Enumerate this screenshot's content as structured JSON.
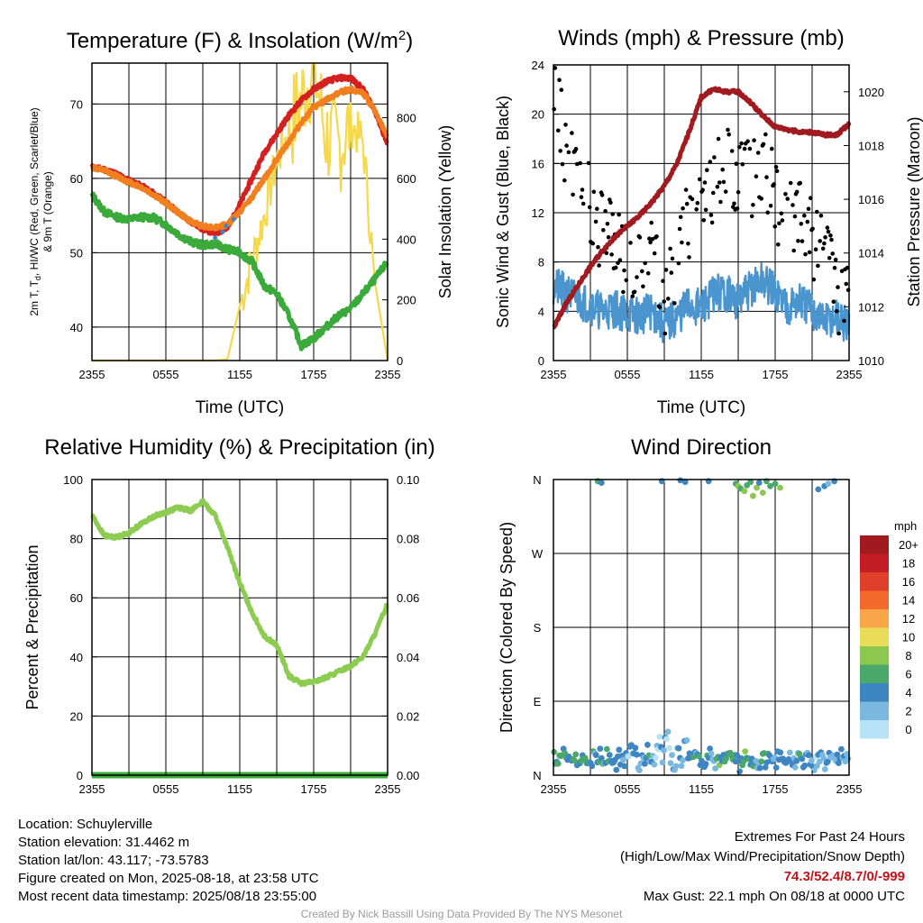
{
  "chart_data": [
    {
      "type": "line",
      "title": "Temperature (F) & Insolation (W/m²)",
      "title_main": "Temperature (F) & Insolation (W/m",
      "title_sup": "2",
      "title_end": ")",
      "xlabel": "Time (UTC)",
      "ylabel_left_line1": "2m T, T",
      "ylabel_left_sub": "d",
      "ylabel_left_rest": ", HI/WC (Red, Green, Scarlet/Blue)",
      "ylabel_left_line2": "& 9m T (Orange)",
      "ylabel_right": "Solar Insolation (Yellow)",
      "x_ticks": [
        "2355",
        "0555",
        "1155",
        "1755",
        "2355"
      ],
      "ylim_left": [
        35.5,
        75.5
      ],
      "yticks_left": [
        40,
        50,
        60,
        70
      ],
      "ylim_right": [
        0,
        980
      ],
      "yticks_right": [
        0,
        200,
        400,
        600,
        800
      ],
      "hours": [
        0,
        1,
        2,
        3,
        4,
        5,
        6,
        7,
        8,
        9,
        10,
        11,
        12,
        13,
        14,
        15,
        16,
        17,
        18,
        19,
        20,
        21,
        22,
        23,
        24
      ],
      "series": [
        {
          "color": "#d42020",
          "values": [
            61.5,
            61.2,
            60.6,
            59.7,
            59.0,
            58.0,
            56.8,
            55.4,
            54.2,
            53.2,
            52.6,
            53.3,
            56.5,
            60.0,
            63.5,
            66.0,
            68.5,
            70.5,
            72.0,
            73.0,
            73.5,
            73.5,
            72.0,
            69.0,
            64.5
          ]
        },
        {
          "color": "#f07f20",
          "values": [
            61.5,
            61.0,
            60.3,
            59.5,
            58.8,
            57.8,
            56.7,
            55.4,
            54.2,
            53.6,
            53.4,
            53.8,
            55.5,
            57.5,
            60.0,
            62.5,
            65.0,
            67.5,
            69.5,
            70.5,
            71.5,
            72.0,
            71.5,
            69.0,
            65.5
          ]
        },
        {
          "color": "#3aab3a",
          "values": [
            57.8,
            55.5,
            54.8,
            54.5,
            54.8,
            54.7,
            53.8,
            52.5,
            51.5,
            51.0,
            51.2,
            50.5,
            50.0,
            48.8,
            45.5,
            44.5,
            41.5,
            37.5,
            38.5,
            40.0,
            41.5,
            42.5,
            44.5,
            46.5,
            48.8
          ]
        }
      ],
      "insolation": [
        0,
        0,
        0,
        0,
        0,
        0,
        0,
        0,
        0,
        0,
        0,
        5,
        180,
        330,
        480,
        660,
        760,
        860,
        970,
        740,
        700,
        780,
        720,
        250,
        0
      ],
      "blue_dots": [
        {
          "x": 10.0,
          "y": 52.0
        },
        {
          "x": 10.6,
          "y": 52.8
        },
        {
          "x": 10.9,
          "y": 53.6
        },
        {
          "x": 11.5,
          "y": 54.5
        }
      ]
    },
    {
      "type": "line",
      "title": "Winds (mph) & Pressure (mb)",
      "xlabel": "Time (UTC)",
      "ylabel_left": "Sonic Wind & Gust (Blue, Black)",
      "ylabel_right": "Station Pressure (Maroon)",
      "x_ticks": [
        "2355",
        "0555",
        "1155",
        "1755",
        "2355"
      ],
      "ylim_left": [
        0,
        24
      ],
      "yticks_left": [
        0,
        4,
        8,
        12,
        16,
        20,
        24
      ],
      "ylim_right": [
        1010,
        1021
      ],
      "yticks_right": [
        1010,
        1012,
        1014,
        1016,
        1018,
        1020
      ],
      "hours": [
        0,
        1,
        2,
        3,
        4,
        5,
        6,
        7,
        8,
        9,
        10,
        11,
        12,
        13,
        14,
        15,
        16,
        17,
        18,
        19,
        20,
        21,
        22,
        23,
        24
      ],
      "wind_speed": [
        6.0,
        5.5,
        5.0,
        4.5,
        4.0,
        4.2,
        3.8,
        3.6,
        4.0,
        2.8,
        3.5,
        4.5,
        4.2,
        5.5,
        5.5,
        4.8,
        5.8,
        6.5,
        5.5,
        4.5,
        4.8,
        4.0,
        3.2,
        3.5,
        2.5
      ],
      "gust": [
        22.1,
        17,
        14.5,
        12.5,
        10.5,
        9.5,
        8.5,
        7.5,
        9.5,
        5.5,
        7.8,
        11.5,
        13,
        14.5,
        15.5,
        14,
        15,
        16,
        13,
        11,
        12.5,
        10,
        8,
        6,
        4
      ],
      "pressure": [
        1011.2,
        1012.1,
        1012.8,
        1013.5,
        1014.1,
        1014.6,
        1015.0,
        1015.4,
        1015.9,
        1016.5,
        1017.3,
        1018.5,
        1019.8,
        1020.1,
        1020.0,
        1020.0,
        1019.6,
        1019.1,
        1018.7,
        1018.6,
        1018.5,
        1018.5,
        1018.4,
        1018.4,
        1018.8
      ]
    },
    {
      "type": "line",
      "title": "Relative Humidity (%) & Precipitation (in)",
      "ylabel": "Percent & Precipitation",
      "x_ticks": [
        "2355",
        "0555",
        "1155",
        "1755",
        "2355"
      ],
      "ylim_left": [
        0,
        100
      ],
      "yticks_left": [
        0,
        20,
        40,
        60,
        80,
        100
      ],
      "ylim_right": [
        0,
        0.1
      ],
      "yticks_right": [
        "0.00",
        "0.02",
        "0.04",
        "0.06",
        "0.08",
        "0.10"
      ],
      "hours": [
        0,
        1,
        2,
        3,
        4,
        5,
        6,
        7,
        8,
        9,
        10,
        11,
        12,
        13,
        14,
        15,
        16,
        17,
        18,
        19,
        20,
        21,
        22,
        23,
        24
      ],
      "series": [
        {
          "color": "#8ccc50",
          "values": [
            88,
            81,
            80.5,
            82,
            85,
            87.5,
            89,
            90.5,
            89.5,
            92.5,
            88,
            77,
            65,
            55,
            47,
            44,
            33.5,
            31,
            31.5,
            33,
            35,
            37,
            40,
            48,
            58
          ]
        },
        {
          "color": "#3aab3a",
          "values": [
            0,
            0,
            0,
            0,
            0,
            0,
            0,
            0,
            0,
            0,
            0,
            0,
            0,
            0,
            0,
            0,
            0,
            0,
            0,
            0,
            0,
            0,
            0,
            0,
            0
          ]
        }
      ]
    },
    {
      "type": "scatter",
      "title": "Wind Direction",
      "ylabel": "Direction (Colored By Speed)",
      "x_ticks": [
        "2355",
        "0555",
        "1155",
        "1755",
        "2355"
      ],
      "y_ticks": [
        "N",
        "E",
        "S",
        "W",
        "N"
      ],
      "ylim": [
        0,
        360
      ],
      "legend_title": "mph",
      "legend_labels": [
        "20+",
        "18",
        "16",
        "14",
        "12",
        "10",
        "8",
        "6",
        "4",
        "2",
        "0"
      ],
      "legend_colors": [
        "#a01a1f",
        "#c41e24",
        "#e03f2b",
        "#f26a2c",
        "#f9a54a",
        "#e8dc58",
        "#8cc850",
        "#4aa86a",
        "#3e86c2",
        "#7ab8e0",
        "#b8e2f6"
      ],
      "points_hours": [
        0.2,
        0.5,
        0.8,
        1.1,
        1.4,
        1.7,
        2.0,
        2.3,
        2.6,
        2.9,
        3.2,
        3.5,
        3.8,
        4.1,
        4.4,
        4.7,
        5.0,
        5.3,
        5.6,
        5.9,
        6.2,
        6.5,
        6.8,
        7.1,
        7.4,
        7.7,
        8.0,
        8.3,
        8.6,
        8.9,
        9.2,
        9.5,
        9.8,
        10.1,
        10.4,
        10.7,
        11.0,
        11.3,
        11.6,
        11.9,
        12.2,
        12.5,
        12.8,
        13.1,
        13.4,
        13.7,
        14.0,
        14.3,
        14.6,
        14.9,
        15.2,
        15.5,
        15.8,
        16.1,
        16.4,
        16.7,
        17.0,
        17.3,
        17.6,
        17.9,
        18.2,
        18.5,
        18.8,
        19.1,
        19.4,
        19.7,
        20.0,
        20.3,
        20.6,
        20.9,
        21.2,
        21.5,
        21.8,
        22.1,
        22.4,
        22.7,
        23.0,
        23.3,
        23.6,
        23.9
      ],
      "points_dir": [
        22,
        15,
        28,
        12,
        18,
        25,
        10,
        20,
        14,
        8,
        22,
        16,
        30,
        12,
        26,
        18,
        10,
        24,
        14,
        20,
        28,
        35,
        18,
        12,
        22,
        30,
        16,
        24,
        40,
        18,
        55,
        20,
        12,
        28,
        16,
        45,
        22,
        14,
        26,
        18,
        10,
        24,
        30,
        15,
        20,
        12,
        28,
        18,
        22,
        16,
        10,
        26,
        14,
        20,
        18,
        12,
        24,
        16,
        28,
        10,
        22,
        18,
        14,
        26,
        20,
        12,
        30,
        16,
        24,
        18,
        14,
        22,
        28,
        12,
        20,
        26,
        16,
        30,
        22,
        24
      ],
      "points_speed": [
        4,
        6,
        5,
        4,
        3,
        6,
        5,
        4,
        7,
        5,
        4,
        3,
        5,
        4,
        6,
        3,
        4,
        5,
        4,
        3,
        2,
        4,
        3,
        2,
        3,
        4,
        2,
        1,
        2,
        3,
        1,
        2,
        3,
        4,
        2,
        3,
        5,
        4,
        3,
        6,
        4,
        5,
        3,
        4,
        7,
        5,
        4,
        6,
        5,
        3,
        4,
        7,
        6,
        5,
        4,
        3,
        6,
        5,
        4,
        3,
        4,
        5,
        3,
        4,
        2,
        3,
        4,
        5,
        3,
        4,
        2,
        3,
        2,
        3,
        4,
        2,
        3,
        2,
        3,
        2
      ],
      "north_hours": [
        3.6,
        3.9,
        8.8,
        10.3,
        10.7,
        12.6,
        14.8,
        15.0,
        15.2,
        15.5,
        15.7,
        16.0,
        16.2,
        16.5,
        16.7,
        17.0,
        17.3,
        17.6,
        18.0,
        18.4,
        21.5,
        22.0,
        22.3,
        22.8
      ],
      "north_dir": [
        358,
        356,
        358,
        359,
        357,
        358,
        355,
        352,
        349,
        346,
        353,
        357,
        340,
        350,
        356,
        344,
        358,
        352,
        355,
        350,
        348,
        352,
        355,
        358
      ],
      "north_speed": [
        6,
        4,
        4,
        4,
        4,
        4,
        6,
        8,
        6,
        7,
        5,
        6,
        8,
        7,
        4,
        7,
        6,
        5,
        6,
        7,
        4,
        4,
        2,
        4
      ]
    }
  ],
  "info": {
    "location": "Location: Schuylerville",
    "elevation": "Station elevation: 31.4462 m",
    "latlon": "Station lat/lon: 43.117; -73.5783",
    "created": "Figure created on Mon, 2025-08-18, at 23:58 UTC",
    "recent": "Most recent data timestamp: 2025/08/18 23:55:00"
  },
  "extremes": {
    "title": "Extremes For Past 24 Hours",
    "subtitle": "(High/Low/Max Wind/Precipitation/Snow Depth)",
    "values": "74.3/52.4/8.7/0/-999",
    "max_gust": "Max Gust: 22.1 mph On 08/18 at 0000 UTC"
  },
  "credit": "Created By Nick Bassill Using Data Provided By The NYS Mesonet"
}
